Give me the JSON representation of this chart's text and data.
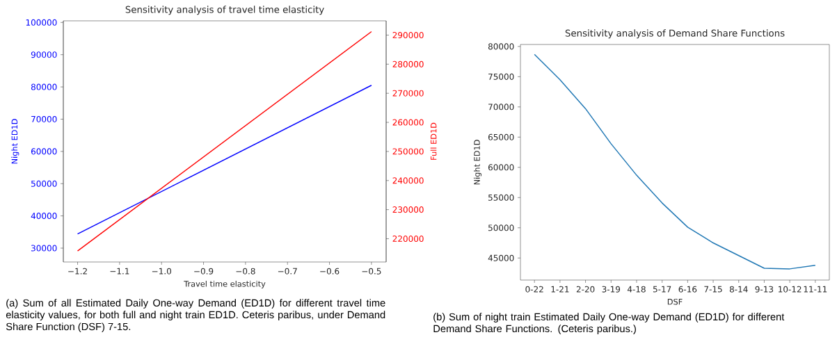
{
  "chart_data": [
    {
      "type": "line",
      "title": "Sensitivity analysis of travel time elasticity",
      "xlabel": "Travel time elasticity",
      "ylabel": "Night ED1D",
      "y2label": "Full ED1D",
      "x": [
        -1.2,
        -0.5
      ],
      "series": [
        {
          "color": "#0000ff",
          "values": [
            34400,
            80500
          ]
        },
        {
          "color": "#ff0000",
          "values": [
            215800,
            291200
          ],
          "axis": "y2"
        }
      ],
      "xlim": [
        -1.234,
        -0.465
      ],
      "xticks": [
        {
          "value": -1.2,
          "label": "−1.2"
        },
        {
          "value": -1.1,
          "label": "−1.1"
        },
        {
          "value": -1.0,
          "label": "−1.0"
        },
        {
          "value": -0.9,
          "label": "−0.9"
        },
        {
          "value": -0.8,
          "label": "−0.8"
        },
        {
          "value": -0.7,
          "label": "−0.7"
        },
        {
          "value": -0.6,
          "label": "−0.6"
        },
        {
          "value": -0.5,
          "label": "−0.5"
        }
      ],
      "ylim": [
        25700,
        100500
      ],
      "yticks": [
        30000,
        40000,
        50000,
        60000,
        70000,
        80000,
        90000,
        100000
      ],
      "y2lim": [
        212000,
        294900
      ],
      "y2ticks": [
        220000,
        230000,
        240000,
        250000,
        260000,
        270000,
        280000,
        290000
      ],
      "annotations": [
        "(a) Sum of all Estimated Daily One-way Demand (ED1D) for different travel time elasticity values, for both full and night train ED1D. Ceteris paribus, under Demand Share Function (DSF) 7-15."
      ]
    },
    {
      "type": "line",
      "title": "Sensitivity analysis of Demand Share Functions",
      "xlabel": "DSF",
      "ylabel": "Night ED1D",
      "categories": [
        "0-22",
        "1-21",
        "2-20",
        "3-19",
        "4-18",
        "5-17",
        "6-16",
        "7-15",
        "8-14",
        "9-13",
        "10-12",
        "11-11"
      ],
      "series": [
        {
          "color": "#1f77b4",
          "values": [
            78700,
            74500,
            69700,
            63900,
            58700,
            54100,
            50100,
            47500,
            45400,
            43300,
            43200,
            43800
          ]
        }
      ],
      "ylim": [
        41350,
        80330
      ],
      "yticks": [
        45000,
        50000,
        55000,
        60000,
        65000,
        70000,
        75000,
        80000
      ],
      "annotations": [
        "(b) Sum of night train Estimated Daily One-way Demand (ED1D) for different Demand Share Functions. (Ceteris paribus.)"
      ]
    }
  ]
}
